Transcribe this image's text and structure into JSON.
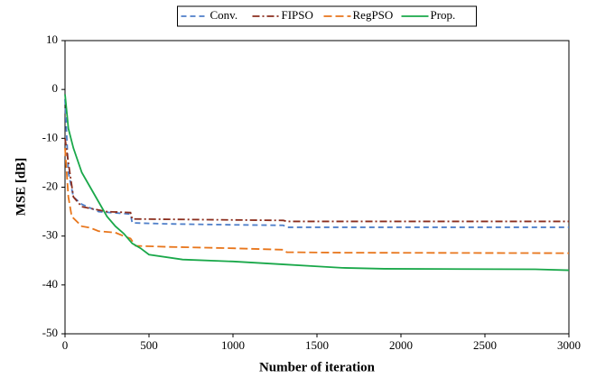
{
  "chart_data": {
    "type": "line",
    "x_label": "Number of iteration",
    "y_label": "MSE [dB]",
    "xlim": [
      0,
      3000
    ],
    "ylim": [
      -50,
      10
    ],
    "xticks": [
      0,
      500,
      1000,
      1500,
      2000,
      2500,
      3000
    ],
    "yticks": [
      -50,
      -40,
      -30,
      -20,
      -10,
      0,
      10
    ],
    "legend": "top",
    "series": [
      {
        "name": "Conv.",
        "color": "#4f7fc9",
        "dash": "6,4",
        "x": [
          0,
          20,
          50,
          100,
          200,
          390,
          400,
          600,
          1000,
          1300,
          1320,
          3000
        ],
        "values": [
          -2,
          -17,
          -22,
          -23.5,
          -25,
          -25.5,
          -27.3,
          -27.5,
          -27.7,
          -27.8,
          -28.2,
          -28.2
        ]
      },
      {
        "name": "FIPSO",
        "color": "#8b2e1e",
        "dash": "8,3,2,3",
        "x": [
          0,
          20,
          50,
          100,
          250,
          390,
          400,
          1000,
          1300,
          1320,
          3000
        ],
        "values": [
          -10,
          -15,
          -22,
          -24,
          -25,
          -25.2,
          -26.5,
          -26.7,
          -26.8,
          -27,
          -27
        ]
      },
      {
        "name": "RegPSO",
        "color": "#e8761c",
        "dash": "9,4",
        "x": [
          0,
          20,
          40,
          100,
          150,
          200,
          300,
          350,
          390,
          420,
          600,
          1000,
          1300,
          1320,
          1650,
          3000
        ],
        "values": [
          -12,
          -22,
          -26,
          -28,
          -28.3,
          -29,
          -29.3,
          -30,
          -30.5,
          -32,
          -32.2,
          -32.5,
          -32.8,
          -33.3,
          -33.4,
          -33.5
        ]
      },
      {
        "name": "Prop.",
        "color": "#1aa84a",
        "dash": "",
        "x": [
          0,
          20,
          50,
          100,
          150,
          200,
          250,
          300,
          350,
          400,
          450,
          500,
          700,
          1000,
          1300,
          1500,
          1650,
          1900,
          2800,
          3000
        ],
        "values": [
          -1,
          -8,
          -12,
          -17,
          -20,
          -23,
          -26,
          -28,
          -29.5,
          -31.5,
          -32.5,
          -33.8,
          -34.8,
          -35.2,
          -35.8,
          -36.2,
          -36.5,
          -36.7,
          -36.8,
          -37
        ]
      }
    ]
  }
}
